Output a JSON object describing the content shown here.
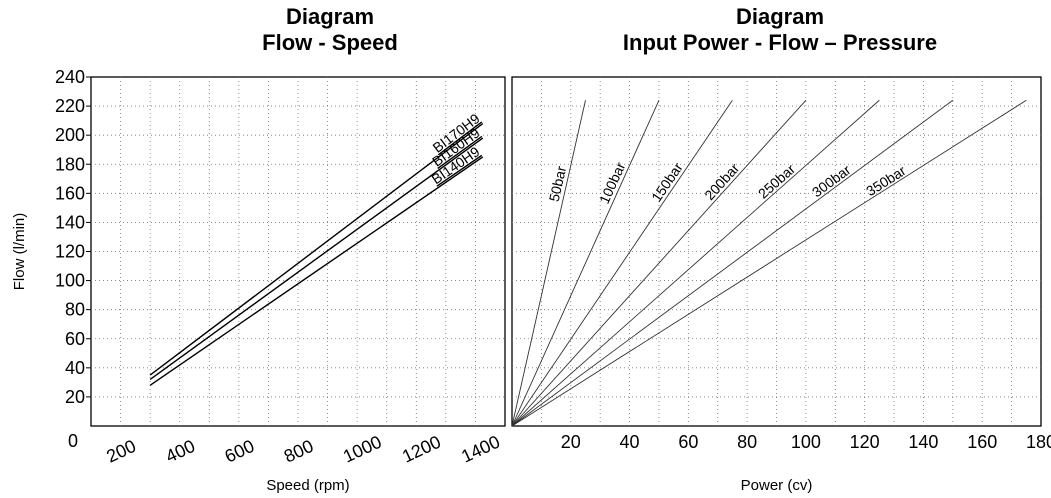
{
  "charts": {
    "left": {
      "title_line1": "Diagram",
      "title_line2": "Flow - Speed"
    },
    "right": {
      "title_line1": "Diagram",
      "title_line2": "Input Power - Flow – Pressure"
    }
  },
  "chart_data": [
    {
      "type": "line",
      "title": "Diagram Flow - Speed",
      "xlabel": "Speed (rpm)",
      "ylabel": "Flow (l/min)",
      "xlim": [
        0,
        1400
      ],
      "ylim": [
        0,
        240
      ],
      "x_ticks": [
        "0",
        "200",
        "400",
        "600",
        "800",
        "1000",
        "1200",
        "1400"
      ],
      "y_ticks": [
        "20",
        "40",
        "60",
        "80",
        "100",
        "120",
        "140",
        "160",
        "180",
        "200",
        "220",
        "240"
      ],
      "grid": true,
      "series": [
        {
          "name": "BI170H9",
          "x": [
            200,
            1325
          ],
          "y": [
            35,
            208
          ]
        },
        {
          "name": "BI160H9",
          "x": [
            200,
            1325
          ],
          "y": [
            32,
            198
          ]
        },
        {
          "name": "BI140H9",
          "x": [
            200,
            1325
          ],
          "y": [
            28,
            185
          ]
        }
      ]
    },
    {
      "type": "line",
      "title": "Diagram Input Power - Flow – Pressure",
      "xlabel": "Power (cv)",
      "ylabel": "",
      "xlim": [
        0,
        180
      ],
      "ylim": [
        0,
        240
      ],
      "x_ticks": [
        "20",
        "40",
        "60",
        "80",
        "100",
        "120",
        "140",
        "160",
        "180"
      ],
      "grid": true,
      "series": [
        {
          "name": "50bar",
          "x": [
            0,
            25
          ],
          "y": [
            0,
            224
          ]
        },
        {
          "name": "100bar",
          "x": [
            0,
            50
          ],
          "y": [
            0,
            224
          ]
        },
        {
          "name": "150bar",
          "x": [
            0,
            75
          ],
          "y": [
            0,
            224
          ]
        },
        {
          "name": "200bar",
          "x": [
            0,
            100
          ],
          "y": [
            0,
            224
          ]
        },
        {
          "name": "250bar",
          "x": [
            0,
            125
          ],
          "y": [
            0,
            224
          ]
        },
        {
          "name": "300bar",
          "x": [
            0,
            150
          ],
          "y": [
            0,
            224
          ]
        },
        {
          "name": "350bar",
          "x": [
            0,
            175
          ],
          "y": [
            0,
            224
          ]
        }
      ]
    }
  ]
}
